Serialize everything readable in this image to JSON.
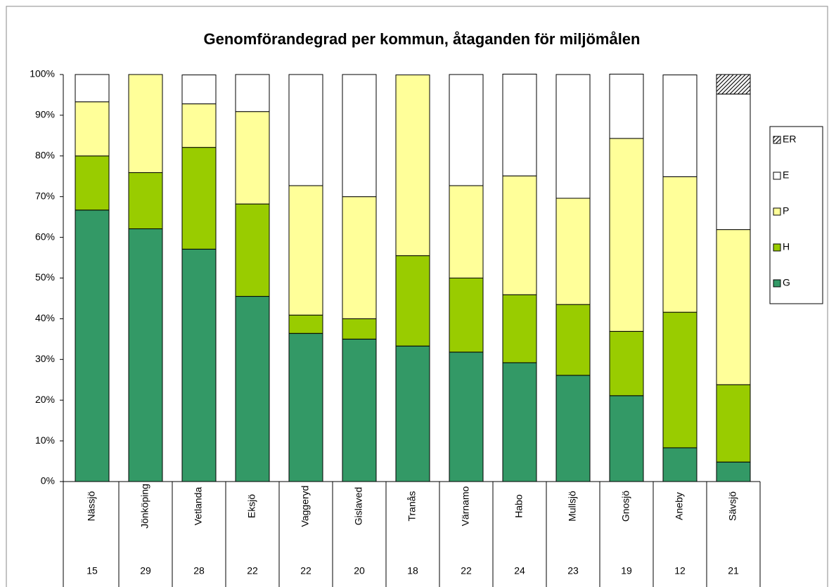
{
  "chart_data": {
    "type": "stacked_bar",
    "title": "Genomförandegrad per kommun, åtaganden för miljömålen",
    "categories": [
      "Nässjö",
      "Jönköping",
      "Vetlanda",
      "Eksjö",
      "Vaggeryd",
      "Gislaved",
      "Tranås",
      "Värnamo",
      "Habo",
      "Mullsjö",
      "Gnosjö",
      "Aneby",
      "Sävsjö"
    ],
    "counts": [
      15,
      29,
      28,
      22,
      22,
      20,
      18,
      22,
      24,
      23,
      19,
      12,
      21
    ],
    "series": [
      {
        "name": "G",
        "color": "#339966",
        "values": [
          66.7,
          62.1,
          57.1,
          45.5,
          36.4,
          35,
          33.3,
          31.8,
          29.2,
          26.1,
          21.1,
          8.3,
          4.8
        ]
      },
      {
        "name": "H",
        "color": "#99cc00",
        "values": [
          13.3,
          13.8,
          25,
          22.7,
          4.5,
          5,
          22.2,
          18.2,
          16.7,
          17.4,
          15.8,
          33.3,
          19
        ]
      },
      {
        "name": "P",
        "color": "#ffff99",
        "values": [
          13.3,
          24.1,
          10.7,
          22.7,
          31.8,
          30,
          44.4,
          22.7,
          29.2,
          26.1,
          47.4,
          33.3,
          38.1
        ]
      },
      {
        "name": "E",
        "color": "#ffffff",
        "values": [
          6.7,
          0,
          7.1,
          9.1,
          27.3,
          30,
          0,
          27.3,
          25,
          30.4,
          15.8,
          25,
          33.3
        ]
      },
      {
        "name": "ER",
        "color": "#ffffff",
        "pattern": "diagonal",
        "values": [
          0,
          0,
          0,
          0,
          0,
          0,
          0,
          0,
          0,
          0,
          0,
          0,
          4.8
        ]
      }
    ],
    "ylim": [
      0,
      100
    ],
    "yticks": [
      {
        "value": 0,
        "label": "0%"
      },
      {
        "value": 10,
        "label": "10%"
      },
      {
        "value": 20,
        "label": "20%"
      },
      {
        "value": 30,
        "label": "30%"
      },
      {
        "value": 40,
        "label": "40%"
      },
      {
        "value": 50,
        "label": "50%"
      },
      {
        "value": 60,
        "label": "60%"
      },
      {
        "value": 70,
        "label": "70%"
      },
      {
        "value": 80,
        "label": "80%"
      },
      {
        "value": 90,
        "label": "90%"
      },
      {
        "value": 100,
        "label": "100%"
      }
    ],
    "grid": false,
    "legend": "right"
  }
}
